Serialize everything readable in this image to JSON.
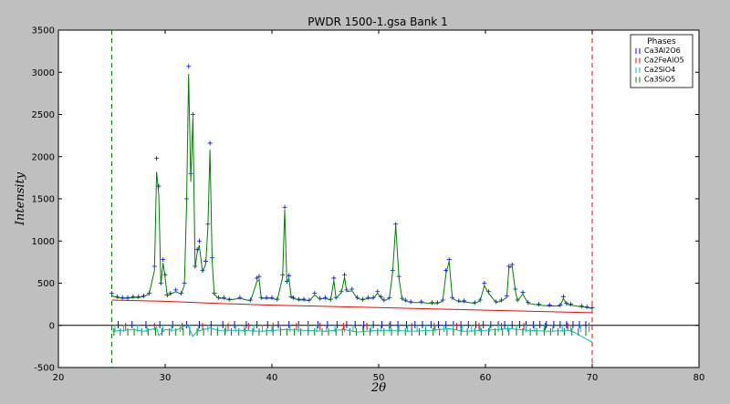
{
  "chart_data": {
    "type": "line",
    "title": "PWDR 1500-1.gsa Bank 1",
    "xlabel": "2θ",
    "ylabel": "Intensity",
    "xlim": [
      20,
      80
    ],
    "ylim": [
      -500,
      3500
    ],
    "xticks": [
      20,
      30,
      40,
      50,
      60,
      70,
      80
    ],
    "yticks": [
      -500,
      0,
      500,
      1000,
      1500,
      2000,
      2500,
      3000,
      3500
    ],
    "grid": false,
    "legend": {
      "title": "Phases",
      "placement": "top-right",
      "entries": [
        {
          "name": "Ca3Al2O6",
          "color": "#0000ff"
        },
        {
          "name": "Ca2FeAlO5",
          "color": "#ff0000"
        },
        {
          "name": "Ca2SiO4",
          "color": "#00bfbf"
        },
        {
          "name": "Ca3SiO5",
          "color": "#008000"
        }
      ]
    },
    "limits": [
      {
        "x": 25.0,
        "color": "#008000",
        "style": "dashed"
      },
      {
        "x": 70.0,
        "color": "#ff0000",
        "style": "dashed"
      }
    ],
    "zero_line": 0,
    "series": [
      {
        "role": "observed",
        "style": "plus",
        "color": "#0000ff",
        "x": [
          25.0,
          25.5,
          26.0,
          26.5,
          27.0,
          27.5,
          28.0,
          28.5,
          29.0,
          29.2,
          29.4,
          29.6,
          29.8,
          30.0,
          30.2,
          30.5,
          31.0,
          31.5,
          31.8,
          32.0,
          32.2,
          32.4,
          32.6,
          32.8,
          33.0,
          33.2,
          33.5,
          33.8,
          34.0,
          34.2,
          34.4,
          34.6,
          35.0,
          35.5,
          36.0,
          37.0,
          38.0,
          38.6,
          38.8,
          39.0,
          39.5,
          40.0,
          40.5,
          41.0,
          41.2,
          41.4,
          41.6,
          41.8,
          42.0,
          42.5,
          43.0,
          43.5,
          44.0,
          44.5,
          45.0,
          45.5,
          45.8,
          46.0,
          46.5,
          46.8,
          47.0,
          47.5,
          48.0,
          48.5,
          49.0,
          49.5,
          49.9,
          50.2,
          50.5,
          51.0,
          51.3,
          51.6,
          51.9,
          52.2,
          52.5,
          53.0,
          54.0,
          55.0,
          55.5,
          56.0,
          56.3,
          56.6,
          56.9,
          57.5,
          58.0,
          59.0,
          59.5,
          59.9,
          60.3,
          61.0,
          61.5,
          62.0,
          62.2,
          62.5,
          62.8,
          63.0,
          63.5,
          64.0,
          65.0,
          66.0,
          67.0,
          67.3,
          67.6,
          68.0,
          69.0,
          69.5,
          70.0
        ],
        "y": [
          380,
          340,
          330,
          330,
          340,
          340,
          350,
          380,
          700,
          1980,
          1650,
          500,
          780,
          600,
          360,
          380,
          420,
          380,
          500,
          1500,
          3070,
          1800,
          2500,
          700,
          900,
          1000,
          650,
          760,
          1200,
          2160,
          800,
          380,
          330,
          330,
          310,
          330,
          300,
          560,
          580,
          330,
          330,
          330,
          310,
          600,
          1400,
          520,
          590,
          340,
          330,
          310,
          310,
          300,
          380,
          320,
          330,
          310,
          560,
          330,
          400,
          600,
          420,
          430,
          330,
          310,
          330,
          330,
          400,
          340,
          300,
          330,
          650,
          1200,
          580,
          320,
          300,
          280,
          280,
          270,
          270,
          300,
          650,
          780,
          330,
          290,
          290,
          270,
          300,
          500,
          400,
          280,
          300,
          350,
          700,
          720,
          430,
          300,
          390,
          270,
          250,
          240,
          240,
          340,
          260,
          250,
          230,
          220,
          210
        ]
      },
      {
        "role": "calculated",
        "style": "line",
        "color": "#008000",
        "x": [
          25.0,
          25.5,
          26.0,
          26.5,
          27.0,
          27.5,
          28.0,
          28.5,
          29.0,
          29.2,
          29.4,
          29.6,
          29.8,
          30.0,
          30.2,
          30.5,
          31.0,
          31.5,
          31.8,
          32.0,
          32.2,
          32.4,
          32.6,
          32.8,
          33.0,
          33.2,
          33.5,
          33.8,
          34.0,
          34.2,
          34.4,
          34.6,
          35.0,
          35.5,
          36.0,
          37.0,
          38.0,
          38.6,
          38.8,
          39.0,
          39.5,
          40.0,
          40.5,
          41.0,
          41.2,
          41.4,
          41.6,
          41.8,
          42.0,
          42.5,
          43.0,
          43.5,
          44.0,
          44.5,
          45.0,
          45.5,
          45.8,
          46.0,
          46.5,
          46.8,
          47.0,
          47.5,
          48.0,
          48.5,
          49.0,
          49.5,
          49.9,
          50.2,
          50.5,
          51.0,
          51.3,
          51.6,
          51.9,
          52.2,
          52.5,
          53.0,
          54.0,
          55.0,
          55.5,
          56.0,
          56.3,
          56.6,
          56.9,
          57.5,
          58.0,
          59.0,
          59.5,
          59.9,
          60.3,
          61.0,
          61.5,
          62.0,
          62.2,
          62.5,
          62.8,
          63.0,
          63.5,
          64.0,
          65.0,
          66.0,
          67.0,
          67.3,
          67.6,
          68.0,
          69.0,
          69.5,
          70.0
        ],
        "y": [
          350,
          330,
          320,
          320,
          330,
          330,
          340,
          370,
          650,
          1820,
          1550,
          480,
          740,
          560,
          350,
          370,
          400,
          370,
          480,
          1400,
          2980,
          1700,
          2470,
          680,
          860,
          950,
          630,
          730,
          1150,
          2080,
          760,
          370,
          320,
          320,
          300,
          320,
          290,
          520,
          540,
          320,
          320,
          320,
          300,
          570,
          1370,
          500,
          560,
          330,
          320,
          300,
          300,
          290,
          360,
          310,
          320,
          300,
          530,
          320,
          390,
          570,
          400,
          410,
          320,
          300,
          320,
          320,
          380,
          330,
          290,
          320,
          620,
          1190,
          560,
          310,
          290,
          270,
          270,
          260,
          260,
          290,
          610,
          760,
          320,
          280,
          280,
          260,
          290,
          470,
          380,
          270,
          290,
          330,
          680,
          700,
          410,
          290,
          370,
          260,
          240,
          230,
          230,
          320,
          250,
          240,
          220,
          210,
          200
        ]
      },
      {
        "role": "background",
        "style": "line",
        "color": "#ff0000",
        "x": [
          25,
          30,
          35,
          40,
          45,
          50,
          55,
          60,
          65,
          70
        ],
        "y": [
          300,
          285,
          260,
          240,
          225,
          210,
          195,
          180,
          165,
          150
        ]
      },
      {
        "role": "difference",
        "style": "line",
        "color": "#00bfbf",
        "x": [
          25.0,
          26.0,
          27.0,
          28.0,
          29.0,
          29.2,
          29.4,
          30.0,
          31.0,
          32.0,
          32.2,
          32.6,
          33.0,
          34.0,
          34.2,
          35.0,
          37.0,
          39.0,
          41.2,
          43.0,
          45.0,
          46.8,
          48.0,
          50.0,
          51.6,
          53.0,
          55.0,
          56.6,
          58.0,
          60.0,
          62.2,
          64.0,
          66.0,
          68.0,
          70.0
        ],
        "y": [
          -70,
          -60,
          -50,
          -70,
          -40,
          -20,
          -120,
          -50,
          -60,
          0,
          -20,
          -130,
          -70,
          -40,
          -30,
          -60,
          -60,
          -70,
          -50,
          -60,
          -70,
          -50,
          -80,
          -60,
          -60,
          -70,
          -60,
          -40,
          -70,
          -60,
          -40,
          -60,
          -70,
          -60,
          -200
        ]
      }
    ],
    "reflection_ticks": {
      "Ca3Al2O6": [
        25.6,
        26.9,
        28.2,
        29.5,
        30.7,
        32.0,
        33.2,
        34.3,
        35.4,
        36.5,
        37.6,
        38.6,
        39.6,
        40.6,
        41.6,
        42.5,
        43.4,
        44.3,
        45.2,
        46.1,
        47.0,
        47.8,
        48.6,
        49.5,
        50.3,
        51.1,
        51.8,
        52.6,
        53.4,
        54.1,
        54.9,
        55.6,
        56.3,
        57.0,
        57.7,
        58.4,
        59.1,
        59.8,
        60.5,
        61.2,
        61.8,
        62.5,
        63.2,
        63.8,
        64.5,
        65.1,
        65.7,
        66.4,
        67.0,
        67.6,
        68.2,
        68.8,
        69.4
      ],
      "Ca2FeAlO5": [
        26.3,
        29.0,
        31.6,
        33.5,
        35.9,
        37.8,
        40.1,
        42.3,
        44.5,
        46.7,
        48.9,
        51.0,
        53.1,
        55.2,
        57.3,
        59.4,
        61.5,
        63.6,
        65.6,
        67.7,
        69.7
      ],
      "Ca2SiO4": [
        25.3,
        26.1,
        27.4,
        28.3,
        29.8,
        30.6,
        31.4,
        32.3,
        33.1,
        34.0,
        34.9,
        35.7,
        36.6,
        37.4,
        38.3,
        39.1,
        40.0,
        40.8,
        41.7,
        42.5,
        43.4,
        44.2,
        45.1,
        45.9,
        46.8,
        47.6,
        48.5,
        49.3,
        50.2,
        51.0,
        51.9,
        52.7,
        53.6,
        54.4,
        55.3,
        56.1,
        57.0,
        57.8,
        58.7,
        59.5,
        60.4,
        61.2,
        62.1,
        62.9,
        63.8,
        64.6,
        65.5,
        66.3,
        67.2,
        68.0,
        68.9,
        69.7
      ],
      "Ca3SiO5": [
        25.2,
        25.8,
        26.5,
        27.1,
        27.8,
        28.4,
        29.1,
        29.7,
        30.4,
        31.0,
        31.7,
        32.3,
        33.0,
        33.6,
        34.3,
        34.9,
        35.6,
        36.2,
        36.9,
        37.5,
        38.2,
        38.8,
        39.5,
        40.1,
        40.8,
        41.4,
        42.1,
        42.7,
        43.4,
        44.0,
        44.7,
        45.3,
        46.0,
        46.6,
        47.3,
        47.9,
        48.6,
        49.2,
        49.9,
        50.5,
        51.2,
        51.8,
        52.5,
        53.1,
        53.8,
        54.4,
        55.1,
        55.7,
        56.4,
        57.0,
        57.7,
        58.3,
        59.0,
        59.6,
        60.3,
        60.9,
        61.6,
        62.2,
        62.9,
        63.5,
        64.2,
        64.8,
        65.5,
        66.1,
        66.8,
        67.4,
        68.1,
        68.7,
        69.4
      ]
    }
  }
}
